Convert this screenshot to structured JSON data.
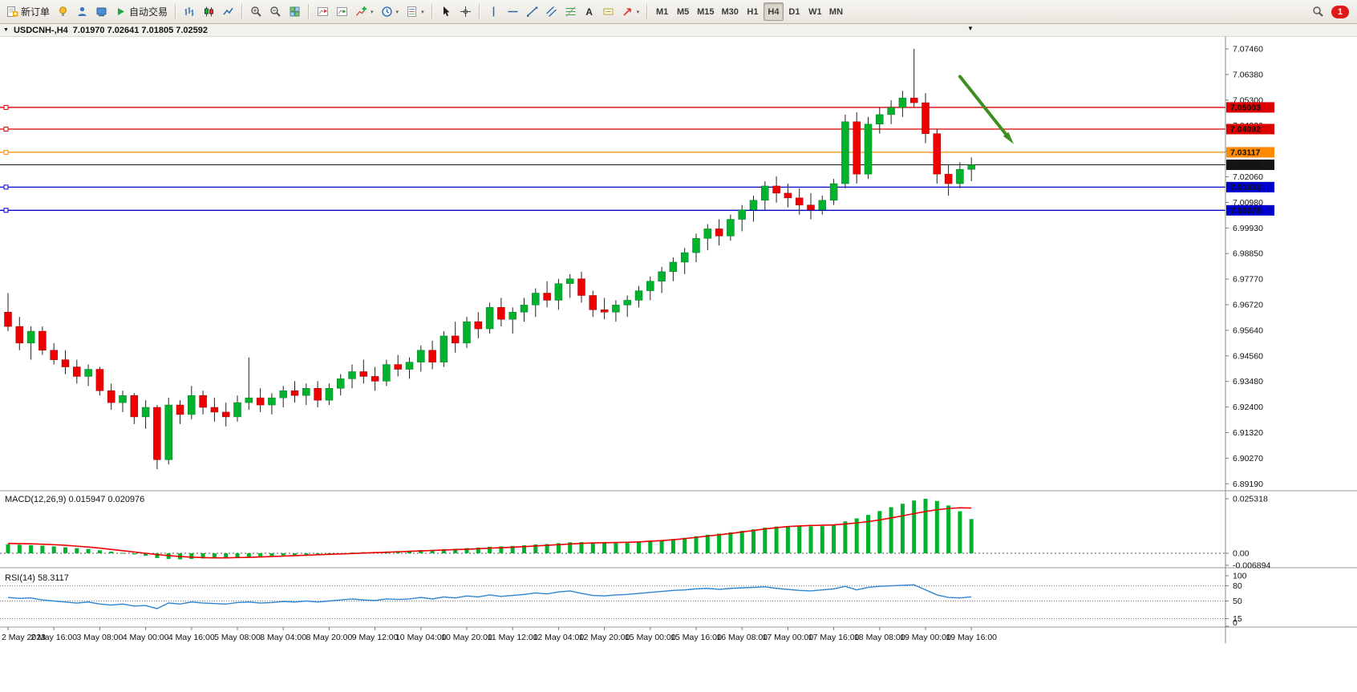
{
  "toolbar": {
    "new_order": "新订单",
    "auto_trading": "自动交易",
    "timeframes": [
      "M1",
      "M5",
      "M15",
      "M30",
      "H1",
      "H4",
      "D1",
      "W1",
      "MN"
    ],
    "active_timeframe": "H4",
    "notification_count": "1"
  },
  "icons": {
    "chevron": "▾",
    "text_tool_glyph": "A",
    "header_triangle": "▼",
    "end_marker_triangle": "▼"
  },
  "chart_header": {
    "symbol": "USDCNH-,H4",
    "quotes": "7.01970 7.02641 7.01805 7.02592"
  },
  "chart_data": [
    {
      "type": "candlestick",
      "symbol": "USDCNH-,H4",
      "timeframe": "H4",
      "up_color": "#00b22c",
      "down_color": "#ef0000",
      "wick_color": "#222222",
      "y_ticks": [
        "7.07460",
        "7.06380",
        "7.05300",
        "7.04220",
        "7.03140",
        "7.02060",
        "7.00980",
        "6.99930",
        "6.98850",
        "6.97770",
        "6.96720",
        "6.95640",
        "6.94560",
        "6.93480",
        "6.92400",
        "6.91320",
        "6.90270",
        "6.89190"
      ],
      "x_label_every": 4,
      "x_labels": [
        "2 May 2023",
        "2 May 16:00",
        "3 May 08:00",
        "4 May 00:00",
        "4 May 16:00",
        "5 May 08:00",
        "8 May 04:00",
        "8 May 20:00",
        "9 May 12:00",
        "10 May 04:00",
        "10 May 20:00",
        "11 May 12:00",
        "12 May 04:00",
        "12 May 20:00",
        "15 May 00:00",
        "15 May 16:00",
        "16 May 08:00",
        "17 May 00:00",
        "17 May 16:00",
        "18 May 08:00",
        "19 May 00:00",
        "19 May 16:00"
      ],
      "candles": [
        [
          6.964,
          6.972,
          6.956,
          6.958
        ],
        [
          6.958,
          6.962,
          6.948,
          6.951
        ],
        [
          6.951,
          6.958,
          6.944,
          6.956
        ],
        [
          6.956,
          6.958,
          6.946,
          6.948
        ],
        [
          6.948,
          6.951,
          6.942,
          6.944
        ],
        [
          6.944,
          6.948,
          6.938,
          6.941
        ],
        [
          6.941,
          6.944,
          6.934,
          6.937
        ],
        [
          6.937,
          6.942,
          6.933,
          6.94
        ],
        [
          6.94,
          6.941,
          6.929,
          6.931
        ],
        [
          6.931,
          6.934,
          6.923,
          6.926
        ],
        [
          6.926,
          6.931,
          6.922,
          6.929
        ],
        [
          6.929,
          6.93,
          6.917,
          6.92
        ],
        [
          6.92,
          6.927,
          6.915,
          6.924
        ],
        [
          6.924,
          6.925,
          6.898,
          6.902
        ],
        [
          6.902,
          6.928,
          6.9,
          6.925
        ],
        [
          6.925,
          6.927,
          6.917,
          6.921
        ],
        [
          6.921,
          6.933,
          6.919,
          6.929
        ],
        [
          6.929,
          6.931,
          6.921,
          6.924
        ],
        [
          6.924,
          6.928,
          6.918,
          6.922
        ],
        [
          6.922,
          6.926,
          6.916,
          6.92
        ],
        [
          6.92,
          6.929,
          6.918,
          6.926
        ],
        [
          6.926,
          6.945,
          6.923,
          6.928
        ],
        [
          6.928,
          6.932,
          6.922,
          6.925
        ],
        [
          6.925,
          6.93,
          6.921,
          6.928
        ],
        [
          6.928,
          6.933,
          6.924,
          6.931
        ],
        [
          6.931,
          6.935,
          6.926,
          6.929
        ],
        [
          6.929,
          6.934,
          6.925,
          6.932
        ],
        [
          6.932,
          6.935,
          6.924,
          6.927
        ],
        [
          6.927,
          6.934,
          6.925,
          6.932
        ],
        [
          6.932,
          6.938,
          6.929,
          6.936
        ],
        [
          6.936,
          6.942,
          6.932,
          6.939
        ],
        [
          6.939,
          6.944,
          6.934,
          6.937
        ],
        [
          6.937,
          6.941,
          6.931,
          6.935
        ],
        [
          6.935,
          6.944,
          6.933,
          6.942
        ],
        [
          6.942,
          6.946,
          6.937,
          6.94
        ],
        [
          6.94,
          6.945,
          6.936,
          6.943
        ],
        [
          6.943,
          6.95,
          6.939,
          6.948
        ],
        [
          6.948,
          6.952,
          6.94,
          6.943
        ],
        [
          6.943,
          6.956,
          6.941,
          6.954
        ],
        [
          6.954,
          6.96,
          6.947,
          6.951
        ],
        [
          6.951,
          6.962,
          6.949,
          6.96
        ],
        [
          6.96,
          6.964,
          6.953,
          6.957
        ],
        [
          6.957,
          6.968,
          6.955,
          6.966
        ],
        [
          6.966,
          6.97,
          6.958,
          6.961
        ],
        [
          6.961,
          6.966,
          6.955,
          6.964
        ],
        [
          6.964,
          6.97,
          6.96,
          6.967
        ],
        [
          6.967,
          6.974,
          6.962,
          6.972
        ],
        [
          6.972,
          6.977,
          6.966,
          6.969
        ],
        [
          6.969,
          6.978,
          6.965,
          6.976
        ],
        [
          6.976,
          6.98,
          6.97,
          6.978
        ],
        [
          6.978,
          6.981,
          6.968,
          6.971
        ],
        [
          6.971,
          6.973,
          6.962,
          6.965
        ],
        [
          6.965,
          6.97,
          6.961,
          6.964
        ],
        [
          6.964,
          6.969,
          6.96,
          6.967
        ],
        [
          6.967,
          6.971,
          6.962,
          6.969
        ],
        [
          6.969,
          6.975,
          6.966,
          6.973
        ],
        [
          6.973,
          6.979,
          6.969,
          6.977
        ],
        [
          6.977,
          6.983,
          6.972,
          6.981
        ],
        [
          6.981,
          6.987,
          6.977,
          6.985
        ],
        [
          6.985,
          6.991,
          6.98,
          6.989
        ],
        [
          6.989,
          6.997,
          6.985,
          6.995
        ],
        [
          6.995,
          7.001,
          6.99,
          6.999
        ],
        [
          6.999,
          7.003,
          6.992,
          6.996
        ],
        [
          6.996,
          7.005,
          6.994,
          7.003
        ],
        [
          7.003,
          7.009,
          6.998,
          7.007
        ],
        [
          7.007,
          7.013,
          7.002,
          7.011
        ],
        [
          7.011,
          7.019,
          7.007,
          7.017
        ],
        [
          7.017,
          7.021,
          7.01,
          7.014
        ],
        [
          7.014,
          7.018,
          7.008,
          7.012
        ],
        [
          7.012,
          7.016,
          7.005,
          7.009
        ],
        [
          7.009,
          7.014,
          7.003,
          7.007
        ],
        [
          7.007,
          7.013,
          7.005,
          7.011
        ],
        [
          7.011,
          7.02,
          7.009,
          7.018
        ],
        [
          7.018,
          7.047,
          7.016,
          7.044
        ],
        [
          7.044,
          7.048,
          7.018,
          7.022
        ],
        [
          7.022,
          7.046,
          7.02,
          7.043
        ],
        [
          7.043,
          7.05,
          7.039,
          7.047
        ],
        [
          7.047,
          7.053,
          7.043,
          7.05
        ],
        [
          7.05,
          7.057,
          7.046,
          7.054
        ],
        [
          7.054,
          7.0746,
          7.05,
          7.052
        ],
        [
          7.052,
          7.056,
          7.035,
          7.039
        ],
        [
          7.039,
          7.041,
          7.018,
          7.022
        ],
        [
          7.022,
          7.026,
          7.013,
          7.018
        ],
        [
          7.018,
          7.027,
          7.016,
          7.024
        ],
        [
          7.024,
          7.029,
          7.019,
          7.0259
        ]
      ],
      "hlines": [
        {
          "price": 7.05003,
          "label": "7.05003",
          "color": "#dd0000",
          "handle": true
        },
        {
          "price": 7.04092,
          "label": "7.04092",
          "color": "#dd0000",
          "handle": true
        },
        {
          "price": 7.03117,
          "label": "7.03117",
          "color": "#ff8a00",
          "handle": true
        },
        {
          "price": 7.02592,
          "label": "7.02592",
          "color": "#161616",
          "handle": false,
          "role": "current-price"
        },
        {
          "price": 7.01653,
          "label": "7.01653",
          "color": "#0000cc",
          "handle": true
        },
        {
          "price": 7.00678,
          "label": "7.00678",
          "color": "#0000cc",
          "handle": true
        }
      ],
      "arrow": {
        "from_bar": 83,
        "from_price": 7.063,
        "to_bar": 87.3,
        "to_price": 7.037,
        "color": "#3f8f1f"
      }
    },
    {
      "type": "bar",
      "name": "MACD",
      "label": "MACD(12,26,9)",
      "values_text": "0.015947 0.020976",
      "bar_color": "#00b22c",
      "signal_color": "#ee0000",
      "y_ticks": [
        "0.025318",
        "0.00",
        "-0.006894"
      ],
      "histogram": [
        0.0042,
        0.004,
        0.0038,
        0.0035,
        0.0032,
        0.0028,
        0.0024,
        0.002,
        0.0014,
        0.0008,
        0.0002,
        -0.0005,
        -0.0012,
        -0.0022,
        -0.0026,
        -0.0028,
        -0.0026,
        -0.0024,
        -0.0022,
        -0.0021,
        -0.0019,
        -0.0016,
        -0.0014,
        -0.0012,
        -0.001,
        -0.0008,
        -0.0006,
        -0.0005,
        -0.0003,
        0.0,
        0.0003,
        0.0005,
        0.0006,
        0.0008,
        0.001,
        0.0012,
        0.0015,
        0.0016,
        0.0019,
        0.0021,
        0.0024,
        0.0026,
        0.003,
        0.0032,
        0.0034,
        0.0037,
        0.0041,
        0.0043,
        0.0047,
        0.0051,
        0.0052,
        0.005,
        0.0048,
        0.0047,
        0.0048,
        0.0051,
        0.0055,
        0.006,
        0.0066,
        0.0072,
        0.0079,
        0.0086,
        0.0091,
        0.0097,
        0.0104,
        0.0111,
        0.0119,
        0.0124,
        0.0126,
        0.0126,
        0.0125,
        0.0126,
        0.0132,
        0.0148,
        0.0162,
        0.0178,
        0.0196,
        0.0214,
        0.023,
        0.0245,
        0.0253,
        0.0243,
        0.0222,
        0.0195,
        0.0159
      ],
      "signal": [
        0.0046,
        0.0045,
        0.0044,
        0.0042,
        0.004,
        0.0037,
        0.0033,
        0.0029,
        0.0024,
        0.0018,
        0.0012,
        0.0006,
        0.0,
        -0.0006,
        -0.0011,
        -0.0015,
        -0.0018,
        -0.002,
        -0.0021,
        -0.0021,
        -0.002,
        -0.0019,
        -0.0017,
        -0.0015,
        -0.0013,
        -0.0011,
        -0.0009,
        -0.0007,
        -0.0005,
        -0.0003,
        -0.0001,
        0.0001,
        0.0003,
        0.0005,
        0.0007,
        0.0009,
        0.0011,
        0.0013,
        0.0015,
        0.0017,
        0.0019,
        0.0021,
        0.0024,
        0.0026,
        0.0028,
        0.0031,
        0.0034,
        0.0037,
        0.004,
        0.0043,
        0.0046,
        0.0048,
        0.0049,
        0.005,
        0.0051,
        0.0053,
        0.0056,
        0.0059,
        0.0063,
        0.0068,
        0.0074,
        0.008,
        0.0086,
        0.0092,
        0.0099,
        0.0106,
        0.0113,
        0.0119,
        0.0124,
        0.0127,
        0.0129,
        0.013,
        0.0132,
        0.0136,
        0.0141,
        0.0147,
        0.0155,
        0.0164,
        0.0174,
        0.0184,
        0.0194,
        0.0202,
        0.0208,
        0.0211,
        0.021
      ]
    },
    {
      "type": "line",
      "name": "RSI",
      "label": "RSI(14)",
      "value_text": "58.3117",
      "line_color": "#2e86d0",
      "levels": [
        100,
        80,
        50,
        15,
        0
      ],
      "dashed_levels": [
        80,
        50,
        15
      ],
      "values": [
        57,
        55,
        56,
        52,
        50,
        48,
        46,
        48,
        44,
        42,
        44,
        40,
        41,
        35,
        46,
        44,
        48,
        46,
        45,
        44,
        47,
        48,
        46,
        47,
        49,
        48,
        50,
        48,
        50,
        52,
        54,
        52,
        51,
        54,
        53,
        54,
        57,
        54,
        58,
        56,
        60,
        58,
        62,
        59,
        61,
        63,
        66,
        64,
        68,
        70,
        65,
        61,
        60,
        62,
        63,
        65,
        67,
        69,
        71,
        72,
        74,
        75,
        73,
        75,
        76,
        77,
        78,
        75,
        73,
        71,
        70,
        72,
        74,
        79,
        72,
        77,
        79,
        80,
        81,
        82,
        72,
        62,
        57,
        56,
        58.3
      ]
    }
  ]
}
